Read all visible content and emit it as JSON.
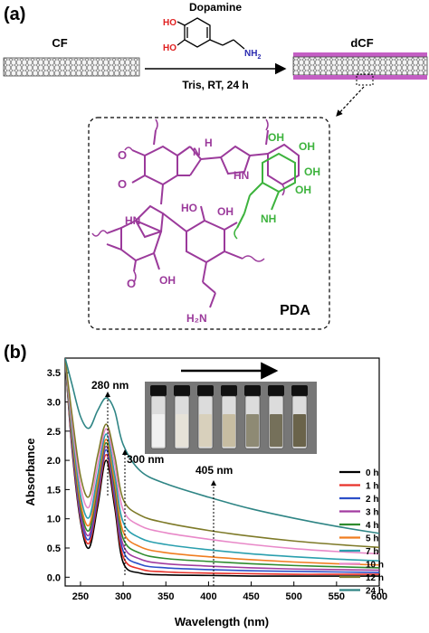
{
  "panel_a": {
    "label": "(a)",
    "cf_label": "CF",
    "dcf_label": "dCF",
    "reagent": "Dopamine",
    "conditions": "Tris, RT, 24 h",
    "dopamine_ho1": "HO",
    "dopamine_ho2": "HO",
    "dopamine_nh2": "NH",
    "dopamine_nh2_sub": "2",
    "pda_label": "PDA",
    "struct_o1": "O",
    "struct_o2": "O",
    "struct_o3": "O",
    "struct_h1": "H",
    "struct_n1": "N",
    "struct_hn1": "HN",
    "struct_ho1": "HO",
    "struct_oh1": "OH",
    "struct_oh2": "OH",
    "struct_oh3": "OH",
    "struct_oh4": "OH",
    "struct_oh5": "OH",
    "struct_oh6": "OH",
    "struct_hn2": "HN",
    "struct_h2n": "H₂N",
    "struct_nh_green": "NH",
    "struct_hn_purple": "H\nN"
  },
  "panel_b": {
    "label": "(b)",
    "annot_280": "280 nm",
    "annot_300": "300 nm",
    "annot_405": "405 nm"
  },
  "colors": {
    "pda_purple": "#9b3a9b",
    "pda_green": "#3db33d",
    "o_red": "#e02020",
    "n_blue": "#2a2ab0",
    "coating": "#c45fc4"
  },
  "chart_data": {
    "type": "line",
    "xlabel": "Wavelength (nm)",
    "ylabel": "Absorbance",
    "xlim": [
      232,
      600
    ],
    "ylim": [
      -0.15,
      3.75
    ],
    "xticks": [
      250,
      300,
      350,
      400,
      450,
      500,
      550,
      600
    ],
    "yticks": [
      0.0,
      0.5,
      1.0,
      1.5,
      2.0,
      2.5,
      3.0,
      3.5
    ],
    "legend_position": "right",
    "inset": "photo of seven vials with arrow, top-center",
    "x": [
      232,
      240,
      250,
      260,
      270,
      280,
      290,
      300,
      320,
      350,
      400,
      450,
      500,
      550,
      600
    ],
    "series": [
      {
        "name": "0 h",
        "color": "#000000",
        "values": [
          3.75,
          2.2,
          0.95,
          0.5,
          1.2,
          2.0,
          1.2,
          0.25,
          0.07,
          0.04,
          0.03,
          0.02,
          0.02,
          0.02,
          0.02
        ]
      },
      {
        "name": "1 h",
        "color": "#e8312a",
        "values": [
          3.75,
          2.25,
          1.0,
          0.58,
          1.3,
          2.1,
          1.3,
          0.35,
          0.14,
          0.09,
          0.07,
          0.06,
          0.05,
          0.05,
          0.05
        ]
      },
      {
        "name": "2 h",
        "color": "#2c4fc9",
        "values": [
          3.75,
          2.3,
          1.05,
          0.65,
          1.38,
          2.18,
          1.38,
          0.45,
          0.22,
          0.16,
          0.13,
          0.11,
          0.1,
          0.09,
          0.08
        ]
      },
      {
        "name": "3 h",
        "color": "#a23ca0",
        "values": [
          3.75,
          2.35,
          1.12,
          0.72,
          1.46,
          2.24,
          1.46,
          0.55,
          0.31,
          0.23,
          0.19,
          0.16,
          0.14,
          0.13,
          0.12
        ]
      },
      {
        "name": "4 h",
        "color": "#2e8b2e",
        "values": [
          3.75,
          2.4,
          1.2,
          0.8,
          1.54,
          2.3,
          1.54,
          0.66,
          0.41,
          0.32,
          0.27,
          0.23,
          0.2,
          0.18,
          0.16
        ]
      },
      {
        "name": "5 h",
        "color": "#f07d20",
        "values": [
          3.75,
          2.46,
          1.28,
          0.89,
          1.62,
          2.36,
          1.63,
          0.78,
          0.52,
          0.42,
          0.35,
          0.3,
          0.26,
          0.23,
          0.21
        ]
      },
      {
        "name": "7 h",
        "color": "#2a9fae",
        "values": [
          3.75,
          2.55,
          1.4,
          1.02,
          1.74,
          2.45,
          1.76,
          0.94,
          0.67,
          0.56,
          0.47,
          0.4,
          0.35,
          0.31,
          0.28
        ]
      },
      {
        "name": "10 h",
        "color": "#e888c8",
        "values": [
          3.75,
          2.66,
          1.56,
          1.2,
          1.92,
          2.54,
          1.94,
          1.15,
          0.88,
          0.76,
          0.65,
          0.56,
          0.49,
          0.44,
          0.4
        ]
      },
      {
        "name": "12 h",
        "color": "#7e7a28",
        "values": [
          3.75,
          2.78,
          1.73,
          1.38,
          2.08,
          2.62,
          2.08,
          1.33,
          1.06,
          0.93,
          0.8,
          0.7,
          0.62,
          0.56,
          0.51
        ]
      },
      {
        "name": "24 h",
        "color": "#2f8585",
        "values": [
          3.75,
          3.3,
          2.75,
          2.55,
          2.85,
          3.07,
          2.85,
          2.27,
          1.82,
          1.6,
          1.37,
          1.17,
          1.01,
          0.87,
          0.75
        ]
      }
    ]
  }
}
